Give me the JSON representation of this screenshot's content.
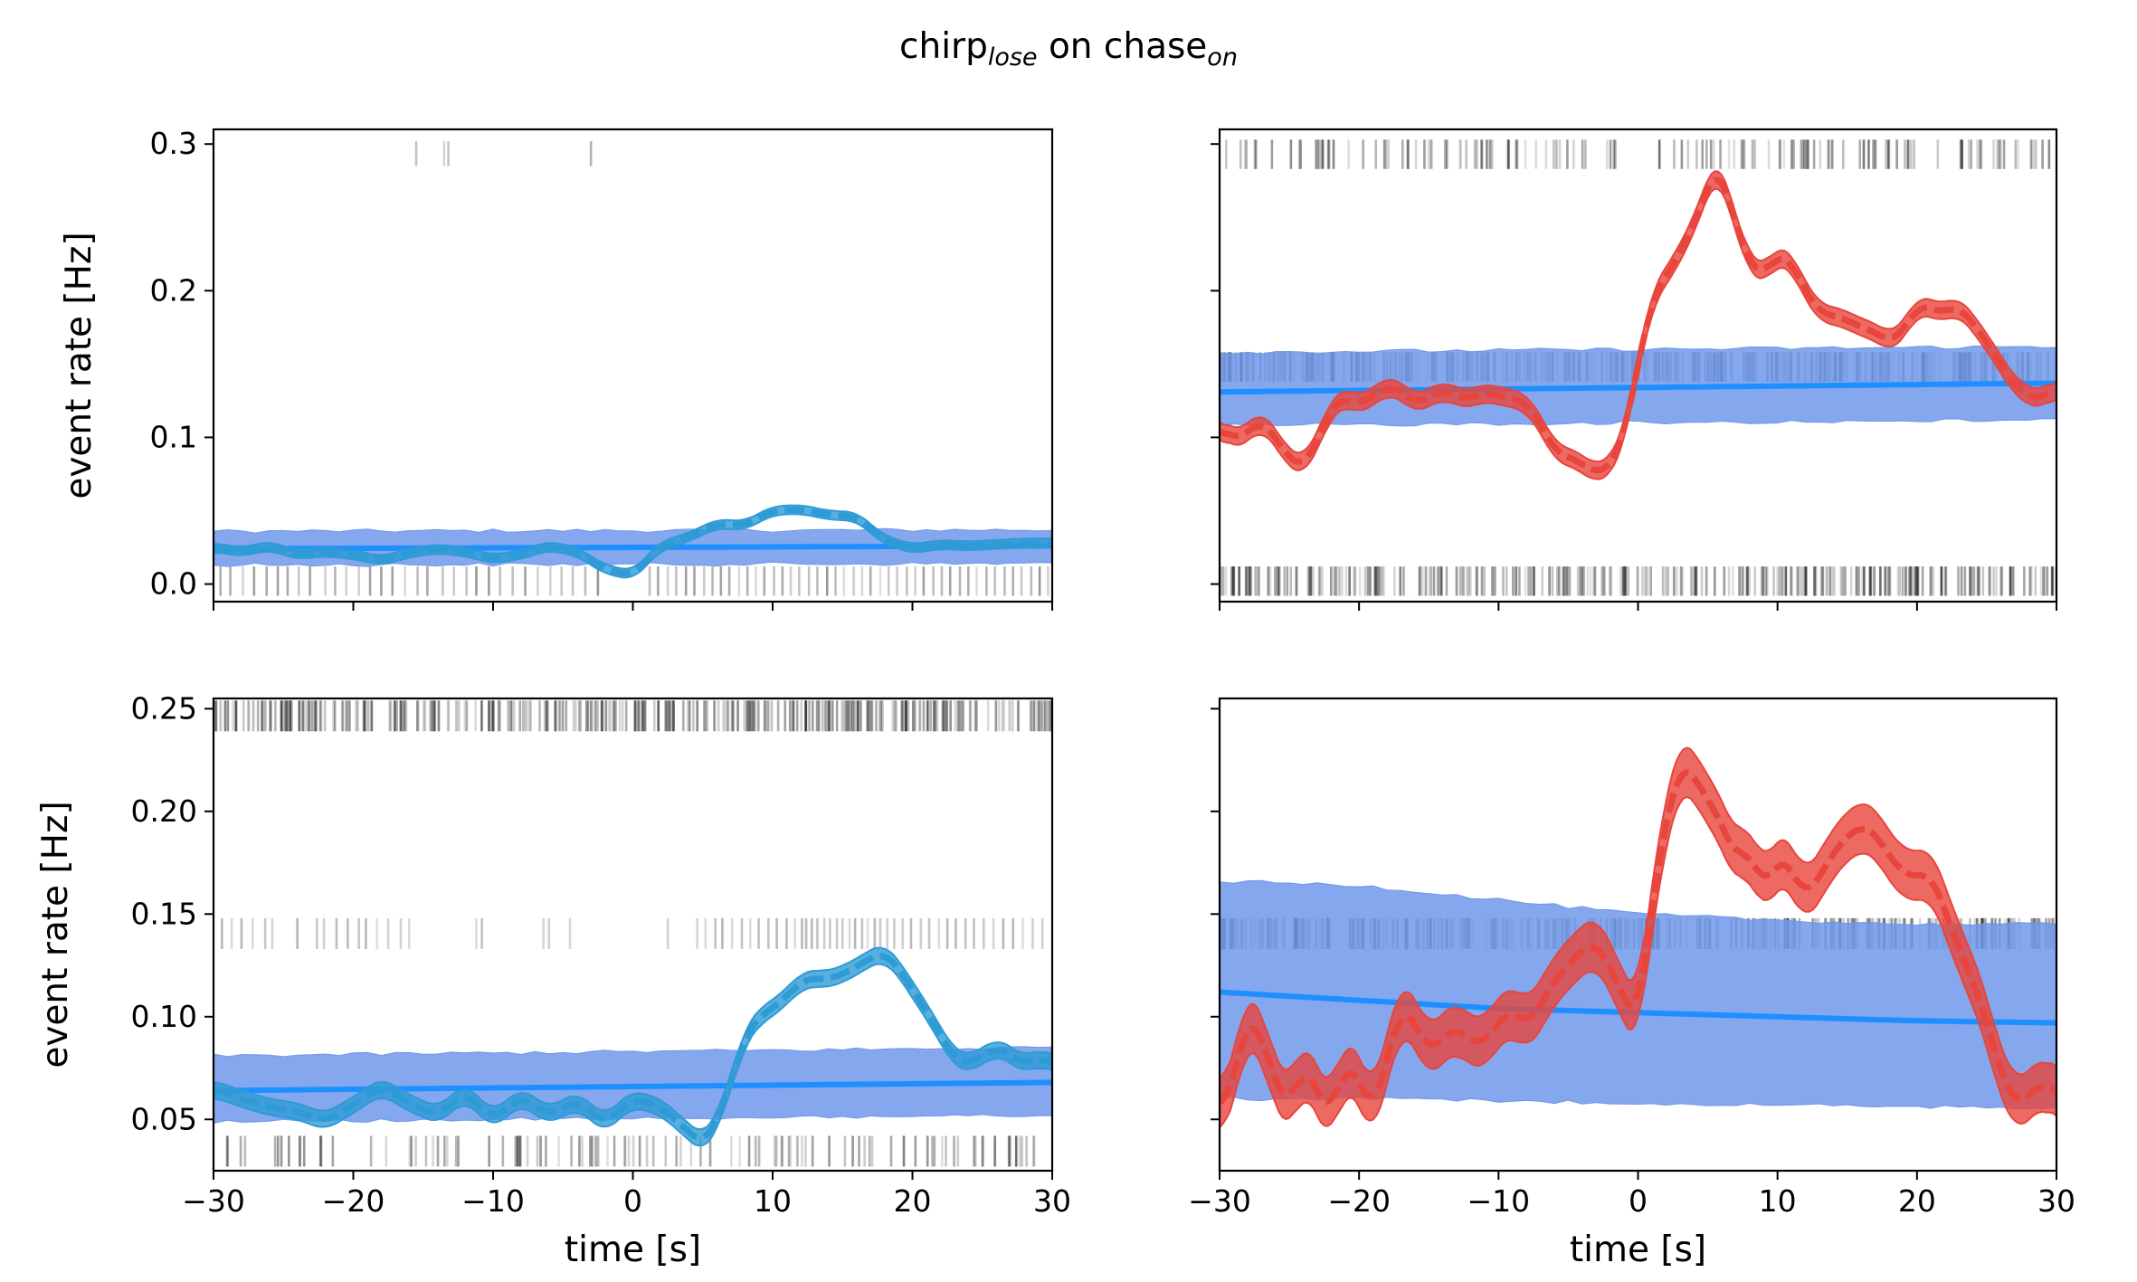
{
  "figure": {
    "title_main_1": "chirp",
    "title_sub_1": "lose",
    "title_mid": " on chase",
    "title_sub_2": "on"
  },
  "colors": {
    "observed_blue": "#2e9bd6",
    "observed_red": "#e8453c",
    "baseline_line": "#1e8fff",
    "baseline_band": "#6f98ea",
    "raster": "#000000"
  },
  "chart_data": [
    {
      "type": "line",
      "panel": "top-left",
      "xlim": [
        -30,
        30
      ],
      "ylim": [
        -0.012,
        0.31
      ],
      "xticks": [
        -30,
        -20,
        -10,
        0,
        10,
        20,
        30
      ],
      "yticks": [
        0.0,
        0.1,
        0.2,
        0.3
      ],
      "ytick_labels": [
        "0.0",
        "0.1",
        "0.2",
        "0.3"
      ],
      "xtick_labels_shown": false,
      "ytick_labels_shown": true,
      "ylabel": "event rate [Hz]",
      "xlabel": "",
      "observed_color": "#2e9bd6",
      "observed": {
        "x": [
          -30,
          -28,
          -26,
          -24,
          -22,
          -20,
          -18,
          -16,
          -14,
          -12,
          -10,
          -8,
          -6,
          -4,
          -2,
          0,
          2,
          4,
          6,
          8,
          10,
          12,
          14,
          16,
          18,
          20,
          22,
          24,
          26,
          28,
          30
        ],
        "y": [
          0.025,
          0.022,
          0.026,
          0.02,
          0.022,
          0.02,
          0.016,
          0.021,
          0.024,
          0.022,
          0.017,
          0.02,
          0.026,
          0.022,
          0.01,
          0.006,
          0.026,
          0.032,
          0.041,
          0.04,
          0.05,
          0.051,
          0.047,
          0.046,
          0.03,
          0.024,
          0.027,
          0.026,
          0.027,
          0.028,
          0.028
        ],
        "band": 0.003
      },
      "baseline": {
        "x": [
          -30,
          30
        ],
        "y": [
          0.024,
          0.026
        ],
        "lower": [
          0.013,
          0.014
        ],
        "upper": [
          0.036,
          0.037
        ]
      },
      "rasters": [
        {
          "y_low": 0.285,
          "y_high": 0.302,
          "density": "sparse",
          "times": [
            -15.5,
            -13.5,
            -13.2,
            -3.0
          ]
        },
        {
          "y_low": -0.008,
          "y_high": 0.012,
          "density": "medium",
          "times": [
            -29.5,
            -28.8,
            -27.9,
            -27.1,
            -26.2,
            -25.4,
            -24.7,
            -23.9,
            -23.1,
            -22.0,
            -21.3,
            -20.5,
            -19.6,
            -18.8,
            -18.0,
            -17.2,
            -16.3,
            -15.4,
            -14.7,
            -13.6,
            -12.8,
            -11.9,
            -11.2,
            -10.3,
            -9.5,
            -8.6,
            -7.7,
            -6.8,
            -5.9,
            -5.1,
            -4.3,
            -3.4,
            -2.5,
            1.2,
            1.8,
            2.5,
            3.1,
            3.8,
            4.4,
            5.1,
            5.7,
            6.3,
            6.9,
            7.6,
            8.2,
            8.8,
            9.4,
            10.1,
            10.7,
            11.3,
            11.9,
            12.6,
            13.2,
            13.9,
            14.5,
            15.1,
            15.8,
            16.4,
            17.0,
            17.7,
            18.3,
            18.9,
            19.6,
            20.2,
            20.8,
            21.5,
            22.1,
            22.7,
            23.4,
            24.0,
            24.6,
            25.3,
            25.9,
            26.6,
            27.2,
            27.8,
            28.5,
            29.1,
            29.7
          ]
        }
      ]
    },
    {
      "type": "line",
      "panel": "top-right",
      "xlim": [
        -30,
        30
      ],
      "ylim": [
        -0.012,
        0.31
      ],
      "xticks": [
        -30,
        -20,
        -10,
        0,
        10,
        20,
        30
      ],
      "yticks": [
        0.0,
        0.1,
        0.2,
        0.3
      ],
      "xtick_labels_shown": false,
      "ytick_labels_shown": false,
      "ylabel": "",
      "xlabel": "",
      "observed_color": "#e8453c",
      "observed": {
        "x": [
          -30,
          -29,
          -28,
          -27,
          -26,
          -25,
          -24,
          -23,
          -22,
          -21,
          -20,
          -19,
          -18,
          -17,
          -16,
          -15,
          -14,
          -13,
          -12,
          -11,
          -10,
          -9,
          -8,
          -7,
          -6,
          -5,
          -4,
          -3,
          -2,
          -1,
          0,
          1,
          2,
          3,
          4,
          5,
          5.5,
          6,
          7,
          8,
          9,
          10,
          11,
          12,
          13,
          14,
          15,
          16,
          17,
          18,
          19,
          20,
          21,
          22,
          23,
          24,
          25,
          26,
          27,
          28,
          29,
          30
        ],
        "y": [
          0.108,
          0.098,
          0.103,
          0.112,
          0.1,
          0.085,
          0.08,
          0.097,
          0.12,
          0.128,
          0.122,
          0.128,
          0.135,
          0.132,
          0.123,
          0.127,
          0.132,
          0.128,
          0.126,
          0.131,
          0.128,
          0.127,
          0.123,
          0.11,
          0.09,
          0.087,
          0.082,
          0.075,
          0.08,
          0.1,
          0.15,
          0.195,
          0.21,
          0.225,
          0.245,
          0.27,
          0.284,
          0.28,
          0.245,
          0.218,
          0.21,
          0.225,
          0.22,
          0.2,
          0.185,
          0.183,
          0.18,
          0.175,
          0.172,
          0.165,
          0.172,
          0.19,
          0.188,
          0.185,
          0.19,
          0.178,
          0.165,
          0.15,
          0.135,
          0.128,
          0.126,
          0.135
        ],
        "band": 0.006
      },
      "baseline": {
        "x": [
          -30,
          30
        ],
        "y": [
          0.131,
          0.137
        ],
        "lower": [
          0.108,
          0.112
        ],
        "upper": [
          0.158,
          0.162
        ]
      },
      "rasters": [
        {
          "y_low": 0.283,
          "y_high": 0.303,
          "density": "dense-gap",
          "gap": [
            -1.5,
            1.5
          ],
          "count": 160
        },
        {
          "y_low": 0.138,
          "y_high": 0.158,
          "density": "very-dense",
          "count": 360
        },
        {
          "y_low": -0.008,
          "y_high": 0.012,
          "density": "very-dense",
          "count": 300
        }
      ]
    },
    {
      "type": "line",
      "panel": "bottom-left",
      "xlim": [
        -30,
        30
      ],
      "ylim": [
        0.025,
        0.255
      ],
      "xticks": [
        -30,
        -20,
        -10,
        0,
        10,
        20,
        30
      ],
      "xtick_labels": [
        "−30",
        "−20",
        "−10",
        "0",
        "10",
        "20",
        "30"
      ],
      "yticks": [
        0.05,
        0.1,
        0.15,
        0.2,
        0.25
      ],
      "ytick_labels": [
        "0.05",
        "0.10",
        "0.15",
        "0.20",
        "0.25"
      ],
      "xtick_labels_shown": true,
      "ytick_labels_shown": true,
      "ylabel": "event rate [Hz]",
      "xlabel": "time [s]",
      "observed_color": "#2e9bd6",
      "observed": {
        "x": [
          -30,
          -28,
          -26,
          -24,
          -22,
          -20,
          -18,
          -16,
          -14,
          -12,
          -10,
          -8,
          -6,
          -4,
          -2,
          0,
          2,
          4,
          5,
          6,
          7,
          8,
          9,
          10,
          11,
          12,
          13,
          14,
          15,
          16,
          17,
          18,
          19,
          20,
          21,
          22,
          23,
          24,
          25,
          26,
          27,
          28,
          29,
          30
        ],
        "y": [
          0.065,
          0.06,
          0.056,
          0.054,
          0.049,
          0.057,
          0.066,
          0.058,
          0.052,
          0.063,
          0.05,
          0.061,
          0.052,
          0.059,
          0.048,
          0.06,
          0.056,
          0.044,
          0.038,
          0.048,
          0.068,
          0.09,
          0.1,
          0.104,
          0.11,
          0.117,
          0.119,
          0.118,
          0.121,
          0.124,
          0.129,
          0.131,
          0.124,
          0.113,
          0.103,
          0.091,
          0.08,
          0.077,
          0.081,
          0.085,
          0.082,
          0.076,
          0.081,
          0.076
        ],
        "band": 0.004
      },
      "baseline": {
        "x": [
          -30,
          30
        ],
        "y": [
          0.064,
          0.068
        ],
        "lower": [
          0.049,
          0.052
        ],
        "upper": [
          0.081,
          0.085
        ]
      },
      "rasters": [
        {
          "y_low": 0.239,
          "y_high": 0.254,
          "density": "very-dense",
          "count": 320
        },
        {
          "y_low": 0.133,
          "y_high": 0.148,
          "density": "sparse-mixed",
          "times": [
            -29.4,
            -28.7,
            -28.0,
            -27.2,
            -26.3,
            -25.8,
            -24.0,
            -22.6,
            -22.1,
            -21.2,
            -20.4,
            -19.6,
            -19.1,
            -18.3,
            -17.5,
            -16.6,
            -16.0,
            -11.2,
            -10.8,
            -6.4,
            -6.0,
            -4.5,
            2.5,
            4.6,
            5.2,
            5.9,
            6.4,
            7.1,
            7.8,
            8.4,
            9.0,
            9.7,
            10.3,
            11.0,
            11.6,
            12.1,
            12.4,
            12.8,
            13.2,
            13.7,
            14.1,
            14.6,
            15.0,
            15.5,
            15.9,
            16.4,
            16.8,
            17.3,
            17.7,
            18.2,
            18.7,
            19.3,
            19.9,
            20.6,
            21.2,
            21.9,
            22.5,
            23.1,
            23.8,
            24.4,
            25.1,
            25.8,
            26.5,
            27.2,
            27.9,
            28.6,
            29.3
          ]
        },
        {
          "y_low": 0.027,
          "y_high": 0.042,
          "density": "medium",
          "count": 110
        }
      ]
    },
    {
      "type": "line",
      "panel": "bottom-right",
      "xlim": [
        -30,
        30
      ],
      "ylim": [
        0.025,
        0.255
      ],
      "xticks": [
        -30,
        -20,
        -10,
        0,
        10,
        20,
        30
      ],
      "xtick_labels": [
        "−30",
        "−20",
        "−10",
        "0",
        "10",
        "20",
        "30"
      ],
      "yticks": [
        0.05,
        0.1,
        0.15,
        0.2,
        0.25
      ],
      "xtick_labels_shown": true,
      "ytick_labels_shown": false,
      "ylabel": "",
      "xlabel": "time [s]",
      "observed_color": "#e8453c",
      "observed": {
        "x": [
          -30,
          -29,
          -28,
          -27,
          -26,
          -25,
          -24,
          -23,
          -22,
          -21,
          -20,
          -19,
          -18,
          -17,
          -16,
          -15,
          -14,
          -13,
          -12,
          -11,
          -10,
          -9,
          -8,
          -7,
          -6,
          -5,
          -4,
          -3,
          -2,
          -1,
          0,
          1,
          2,
          3,
          4,
          5,
          6,
          7,
          8,
          9,
          10,
          11,
          12,
          13,
          14,
          15,
          16,
          17,
          18,
          19,
          20,
          21,
          22,
          23,
          24,
          25,
          26,
          27,
          28,
          29,
          30
        ],
        "y": [
          0.052,
          0.068,
          0.102,
          0.09,
          0.068,
          0.055,
          0.078,
          0.063,
          0.052,
          0.078,
          0.07,
          0.052,
          0.08,
          0.105,
          0.098,
          0.082,
          0.09,
          0.095,
          0.088,
          0.087,
          0.098,
          0.103,
          0.096,
          0.105,
          0.118,
          0.125,
          0.133,
          0.136,
          0.125,
          0.108,
          0.098,
          0.155,
          0.195,
          0.223,
          0.218,
          0.205,
          0.195,
          0.176,
          0.183,
          0.16,
          0.178,
          0.172,
          0.158,
          0.168,
          0.18,
          0.188,
          0.193,
          0.19,
          0.178,
          0.17,
          0.168,
          0.17,
          0.152,
          0.133,
          0.118,
          0.098,
          0.072,
          0.058,
          0.06,
          0.07,
          0.06
        ],
        "band": 0.012
      },
      "baseline": {
        "x": [
          -30,
          -20,
          -10,
          0,
          10,
          20,
          30
        ],
        "y": [
          0.112,
          0.108,
          0.104,
          0.102,
          0.1,
          0.098,
          0.097
        ],
        "lower": [
          0.06,
          0.06,
          0.059,
          0.058,
          0.057,
          0.056,
          0.056
        ],
        "upper": [
          0.166,
          0.164,
          0.157,
          0.15,
          0.147,
          0.145,
          0.145
        ]
      },
      "rasters": [
        {
          "y_low": 0.133,
          "y_high": 0.148,
          "density": "very-dense",
          "count": 300
        }
      ]
    }
  ]
}
